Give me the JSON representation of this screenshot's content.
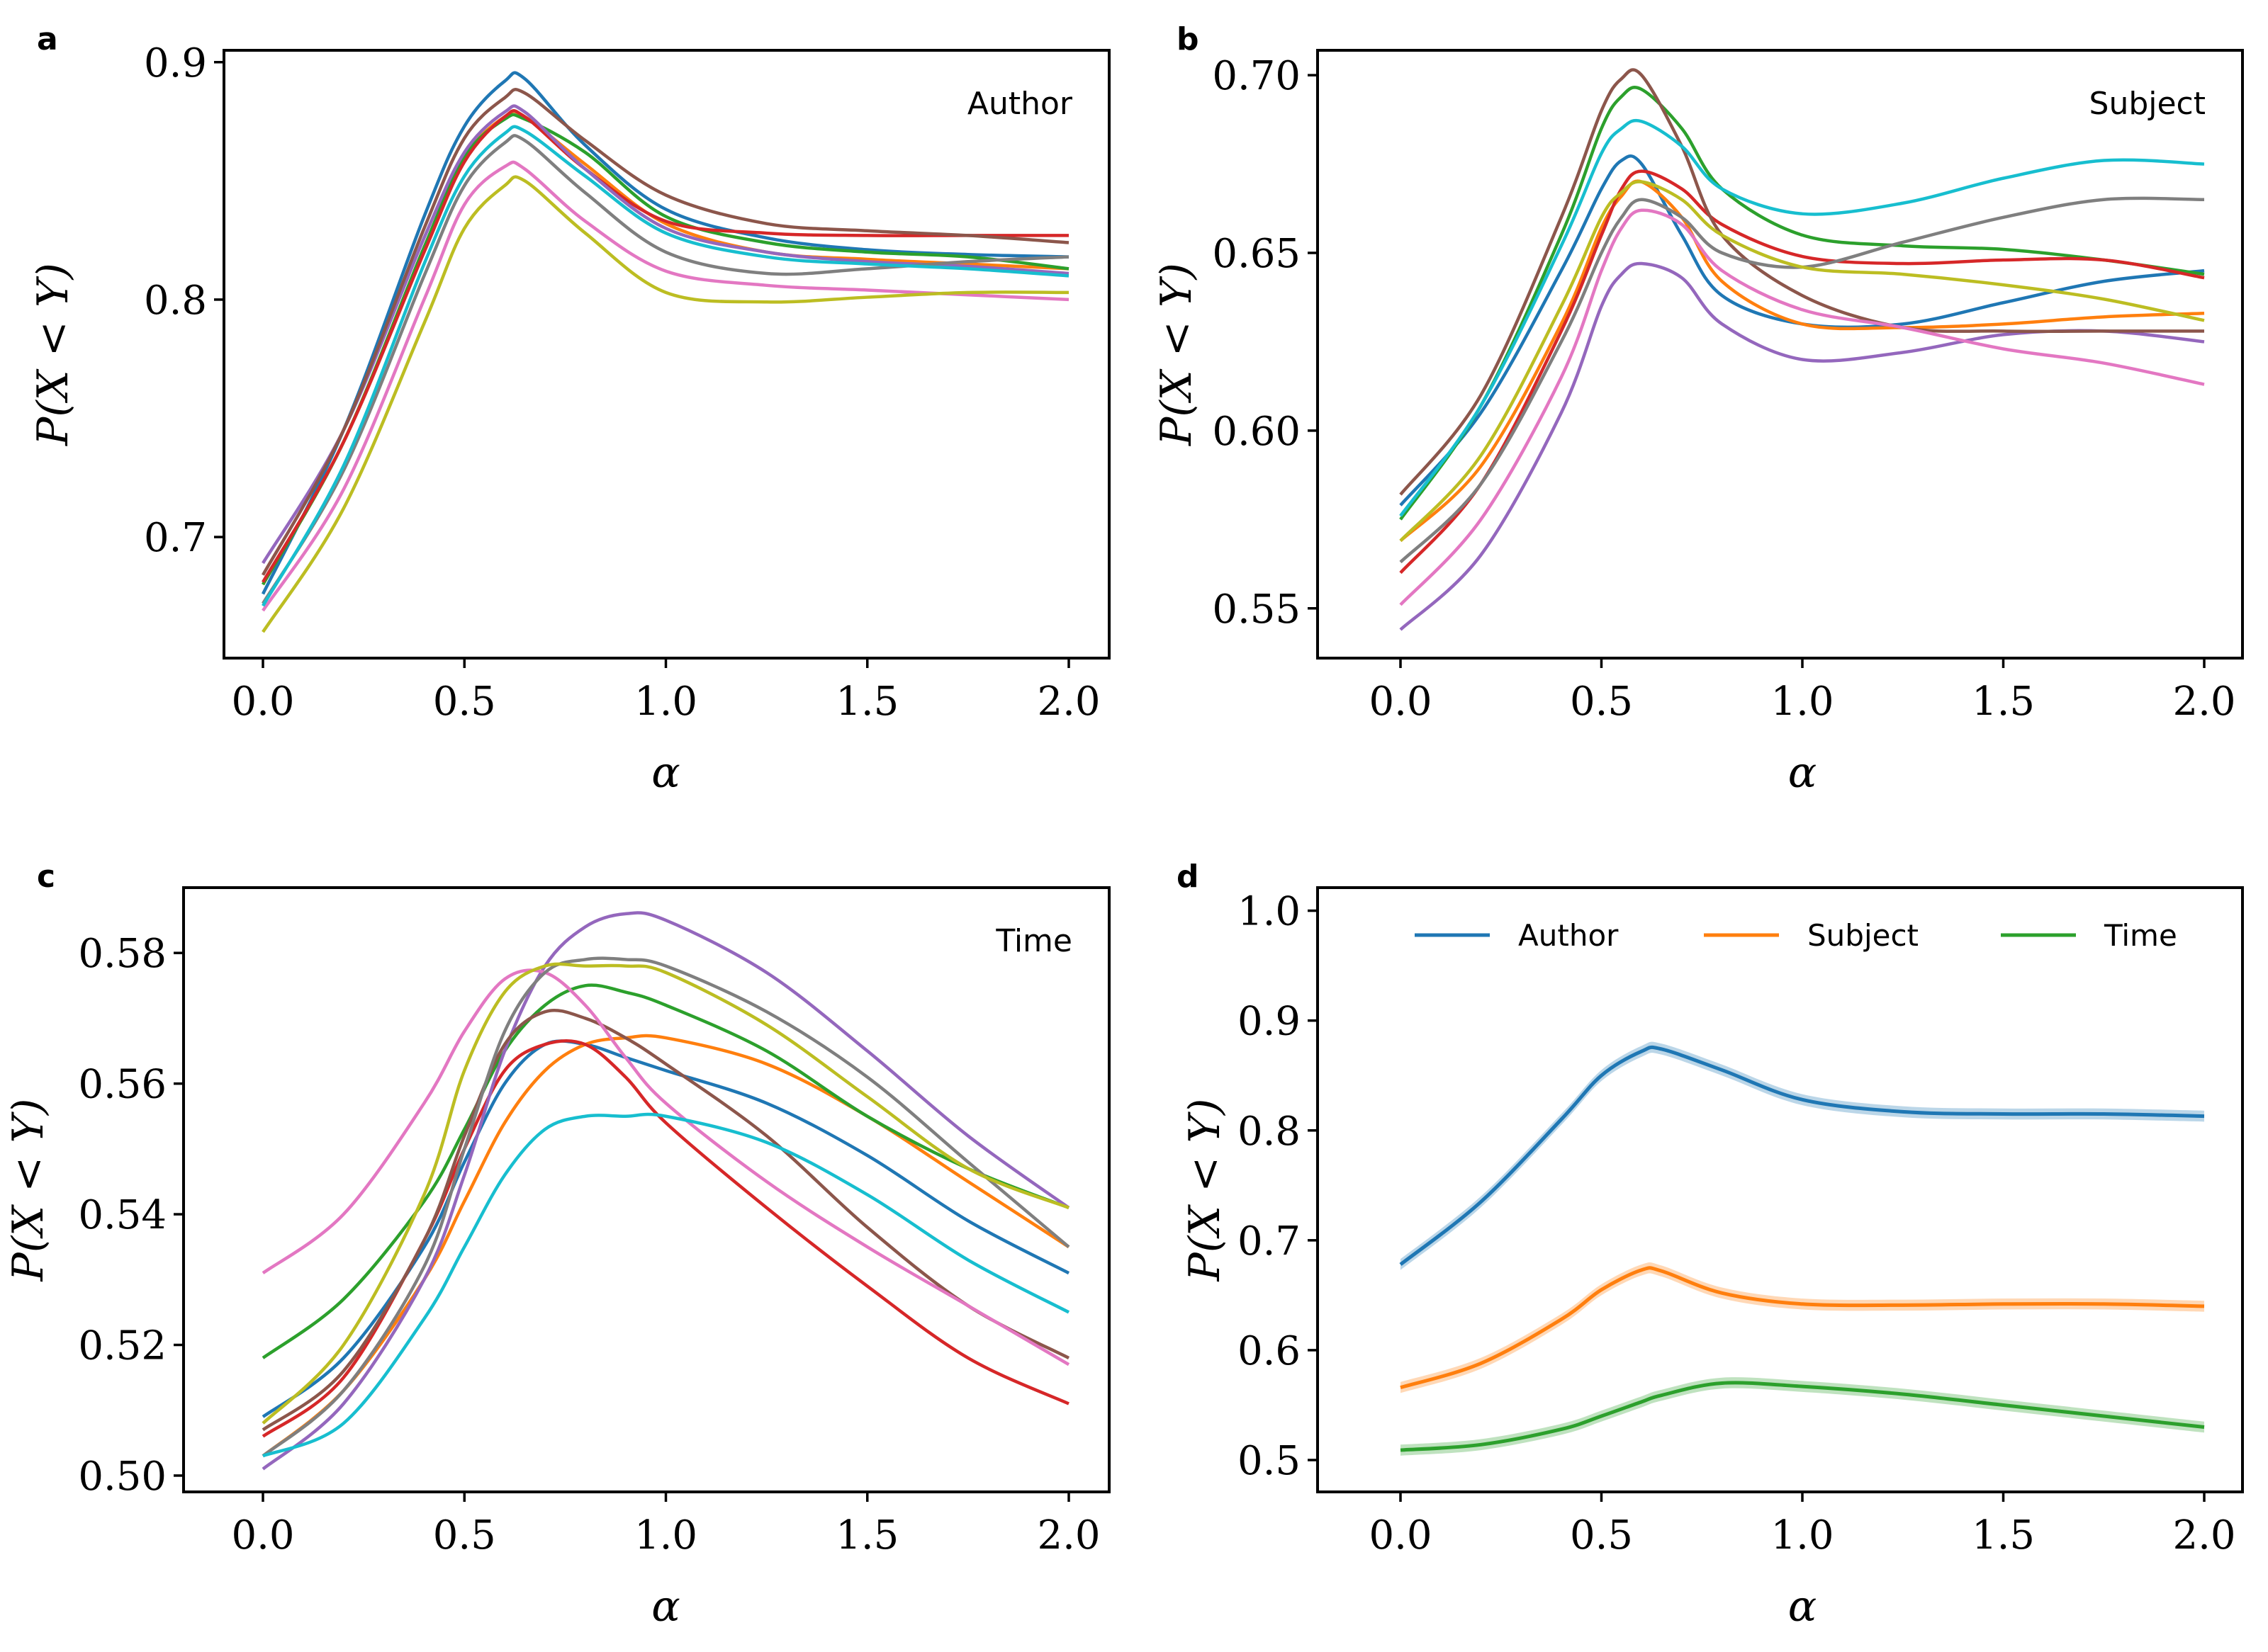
{
  "colors": [
    "#1f77b4",
    "#ff7f0e",
    "#2ca02c",
    "#d62728",
    "#9467bd",
    "#8c564b",
    "#e377c2",
    "#7f7f7f",
    "#bcbd22",
    "#17becf"
  ],
  "chart_data": [
    {
      "panel": "a",
      "type": "line",
      "title": "Author",
      "xlabel": "α",
      "ylabel": "P(X < Y)",
      "xlim": [
        -0.1,
        2.1
      ],
      "ylim": [
        0.649,
        0.905
      ],
      "xticks": [
        0,
        0.5,
        1,
        1.5,
        2
      ],
      "xtick_labels": [
        "0.0",
        "0.5",
        "1.0",
        "1.5",
        "2.0"
      ],
      "yticks": [
        0.7,
        0.8,
        0.9
      ],
      "ytick_labels": [
        "0.7",
        "0.8",
        "0.9"
      ],
      "x": [
        0,
        0.2,
        0.4,
        0.5,
        0.6,
        0.65,
        0.8,
        1.0,
        1.25,
        1.5,
        1.75,
        2.0
      ],
      "series": [
        {
          "values": [
            0.676,
            0.745,
            0.835,
            0.873,
            0.892,
            0.893,
            0.865,
            0.838,
            0.826,
            0.821,
            0.819,
            0.818
          ]
        },
        {
          "values": [
            0.68,
            0.74,
            0.822,
            0.86,
            0.877,
            0.877,
            0.857,
            0.832,
            0.82,
            0.817,
            0.815,
            0.813
          ]
        },
        {
          "values": [
            0.68,
            0.74,
            0.822,
            0.86,
            0.876,
            0.876,
            0.862,
            0.835,
            0.824,
            0.82,
            0.818,
            0.813
          ]
        },
        {
          "values": [
            0.681,
            0.74,
            0.82,
            0.858,
            0.877,
            0.877,
            0.855,
            0.833,
            0.828,
            0.827,
            0.827,
            0.827
          ]
        },
        {
          "values": [
            0.689,
            0.745,
            0.826,
            0.862,
            0.879,
            0.879,
            0.855,
            0.83,
            0.82,
            0.816,
            0.814,
            0.811
          ]
        },
        {
          "values": [
            0.684,
            0.745,
            0.83,
            0.868,
            0.885,
            0.887,
            0.867,
            0.844,
            0.832,
            0.829,
            0.827,
            0.824
          ]
        },
        {
          "values": [
            0.669,
            0.72,
            0.8,
            0.84,
            0.856,
            0.855,
            0.833,
            0.812,
            0.806,
            0.804,
            0.802,
            0.8
          ]
        },
        {
          "values": [
            0.672,
            0.728,
            0.81,
            0.848,
            0.866,
            0.867,
            0.845,
            0.82,
            0.811,
            0.813,
            0.816,
            0.818
          ]
        },
        {
          "values": [
            0.66,
            0.712,
            0.79,
            0.83,
            0.848,
            0.85,
            0.828,
            0.803,
            0.799,
            0.801,
            0.803,
            0.803
          ]
        },
        {
          "values": [
            0.671,
            0.73,
            0.815,
            0.852,
            0.87,
            0.871,
            0.852,
            0.828,
            0.818,
            0.815,
            0.813,
            0.81
          ]
        }
      ]
    },
    {
      "panel": "b",
      "type": "line",
      "title": "Subject",
      "xlabel": "α",
      "ylabel": "P(X < Y)",
      "xlim": [
        -0.1,
        2.1
      ],
      "ylim": [
        0.536,
        0.707
      ],
      "xticks": [
        0,
        0.5,
        1,
        1.5,
        2
      ],
      "xtick_labels": [
        "0.0",
        "0.5",
        "1.0",
        "1.5",
        "2.0"
      ],
      "yticks": [
        0.55,
        0.6,
        0.65,
        0.7
      ],
      "ytick_labels": [
        "0.55",
        "0.60",
        "0.65",
        "0.70"
      ],
      "x": [
        0,
        0.2,
        0.4,
        0.5,
        0.55,
        0.6,
        0.7,
        0.8,
        1.0,
        1.25,
        1.5,
        1.75,
        2.0
      ],
      "series": [
        {
          "values": [
            0.579,
            0.605,
            0.645,
            0.668,
            0.676,
            0.675,
            0.655,
            0.638,
            0.63,
            0.63,
            0.636,
            0.642,
            0.645
          ]
        },
        {
          "values": [
            0.569,
            0.59,
            0.63,
            0.657,
            0.666,
            0.67,
            0.66,
            0.642,
            0.63,
            0.629,
            0.63,
            0.632,
            0.633
          ]
        },
        {
          "values": [
            0.575,
            0.607,
            0.655,
            0.685,
            0.694,
            0.696,
            0.685,
            0.668,
            0.655,
            0.652,
            0.651,
            0.648,
            0.644
          ]
        },
        {
          "values": [
            0.56,
            0.585,
            0.628,
            0.655,
            0.668,
            0.673,
            0.668,
            0.658,
            0.649,
            0.647,
            0.648,
            0.648,
            0.643
          ]
        },
        {
          "values": [
            0.544,
            0.565,
            0.605,
            0.635,
            0.644,
            0.647,
            0.643,
            0.63,
            0.62,
            0.622,
            0.627,
            0.628,
            0.625
          ]
        },
        {
          "values": [
            0.582,
            0.61,
            0.66,
            0.69,
            0.699,
            0.7,
            0.68,
            0.655,
            0.638,
            0.629,
            0.628,
            0.628,
            0.628
          ]
        },
        {
          "values": [
            0.551,
            0.575,
            0.615,
            0.645,
            0.657,
            0.662,
            0.658,
            0.645,
            0.634,
            0.629,
            0.623,
            0.619,
            0.613
          ]
        },
        {
          "values": [
            0.563,
            0.585,
            0.625,
            0.65,
            0.66,
            0.665,
            0.66,
            0.65,
            0.646,
            0.653,
            0.66,
            0.665,
            0.665
          ]
        },
        {
          "values": [
            0.569,
            0.593,
            0.635,
            0.66,
            0.667,
            0.67,
            0.665,
            0.655,
            0.646,
            0.644,
            0.641,
            0.637,
            0.631
          ]
        },
        {
          "values": [
            0.576,
            0.607,
            0.652,
            0.678,
            0.685,
            0.687,
            0.68,
            0.668,
            0.661,
            0.664,
            0.671,
            0.676,
            0.675
          ]
        }
      ]
    },
    {
      "panel": "c",
      "type": "line",
      "title": "Time",
      "xlabel": "α",
      "ylabel": "P(X < Y)",
      "xlim": [
        -0.1,
        2.1
      ],
      "ylim": [
        0.4975,
        0.59
      ],
      "xticks": [
        0,
        0.5,
        1,
        1.5,
        2
      ],
      "xtick_labels": [
        "0.0",
        "0.5",
        "1.0",
        "1.5",
        "2.0"
      ],
      "yticks": [
        0.5,
        0.52,
        0.54,
        0.56,
        0.58
      ],
      "ytick_labels": [
        "0.50",
        "0.52",
        "0.54",
        "0.56",
        "0.58"
      ],
      "x": [
        0,
        0.2,
        0.4,
        0.5,
        0.6,
        0.7,
        0.8,
        0.9,
        1.0,
        1.25,
        1.5,
        1.75,
        2.0
      ],
      "series": [
        {
          "values": [
            0.509,
            0.518,
            0.535,
            0.548,
            0.56,
            0.566,
            0.566,
            0.564,
            0.562,
            0.557,
            0.549,
            0.539,
            0.531
          ]
        },
        {
          "values": [
            0.503,
            0.513,
            0.53,
            0.542,
            0.554,
            0.562,
            0.566,
            0.567,
            0.567,
            0.563,
            0.555,
            0.545,
            0.535
          ]
        },
        {
          "values": [
            0.518,
            0.527,
            0.542,
            0.553,
            0.565,
            0.572,
            0.575,
            0.574,
            0.572,
            0.565,
            0.555,
            0.547,
            0.541
          ]
        },
        {
          "values": [
            0.506,
            0.515,
            0.536,
            0.55,
            0.562,
            0.566,
            0.566,
            0.561,
            0.554,
            0.541,
            0.529,
            0.518,
            0.511
          ]
        },
        {
          "values": [
            0.501,
            0.511,
            0.53,
            0.546,
            0.565,
            0.578,
            0.584,
            0.586,
            0.585,
            0.577,
            0.565,
            0.552,
            0.541
          ]
        },
        {
          "values": [
            0.507,
            0.516,
            0.536,
            0.552,
            0.566,
            0.571,
            0.57,
            0.567,
            0.563,
            0.552,
            0.538,
            0.526,
            0.518
          ]
        },
        {
          "values": [
            0.531,
            0.54,
            0.557,
            0.568,
            0.576,
            0.577,
            0.572,
            0.564,
            0.557,
            0.545,
            0.535,
            0.526,
            0.517
          ]
        },
        {
          "values": [
            0.503,
            0.513,
            0.532,
            0.55,
            0.568,
            0.577,
            0.579,
            0.579,
            0.578,
            0.571,
            0.561,
            0.548,
            0.535
          ]
        },
        {
          "values": [
            0.508,
            0.52,
            0.543,
            0.562,
            0.574,
            0.578,
            0.578,
            0.578,
            0.577,
            0.569,
            0.558,
            0.547,
            0.541
          ]
        },
        {
          "values": [
            0.503,
            0.508,
            0.524,
            0.535,
            0.546,
            0.553,
            0.555,
            0.555,
            0.555,
            0.551,
            0.543,
            0.533,
            0.525
          ]
        }
      ]
    },
    {
      "panel": "d",
      "type": "line",
      "title": "",
      "xlabel": "α",
      "ylabel": "P(X < Y)",
      "xlim": [
        -0.1,
        2.1
      ],
      "ylim": [
        0.471,
        1.021
      ],
      "xticks": [
        0,
        0.5,
        1,
        1.5,
        2
      ],
      "xtick_labels": [
        "0.0",
        "0.5",
        "1.0",
        "1.5",
        "2.0"
      ],
      "yticks": [
        0.5,
        0.6,
        0.7,
        0.8,
        0.9,
        1.0
      ],
      "ytick_labels": [
        "0.5",
        "0.6",
        "0.7",
        "0.8",
        "0.9",
        "1.0"
      ],
      "legend_position": "top",
      "band_halfwidth": 0.005,
      "x": [
        0,
        0.2,
        0.4,
        0.5,
        0.6,
        0.65,
        0.8,
        1.0,
        1.25,
        1.5,
        1.75,
        2.0
      ],
      "series": [
        {
          "name": "Author",
          "values": [
            0.678,
            0.735,
            0.81,
            0.85,
            0.872,
            0.874,
            0.855,
            0.828,
            0.817,
            0.815,
            0.815,
            0.813
          ]
        },
        {
          "name": "Subject",
          "values": [
            0.566,
            0.588,
            0.628,
            0.655,
            0.673,
            0.672,
            0.652,
            0.642,
            0.641,
            0.642,
            0.642,
            0.64
          ]
        },
        {
          "name": "Time",
          "values": [
            0.509,
            0.514,
            0.528,
            0.54,
            0.553,
            0.559,
            0.57,
            0.567,
            0.56,
            0.55,
            0.54,
            0.53
          ]
        }
      ]
    }
  ]
}
